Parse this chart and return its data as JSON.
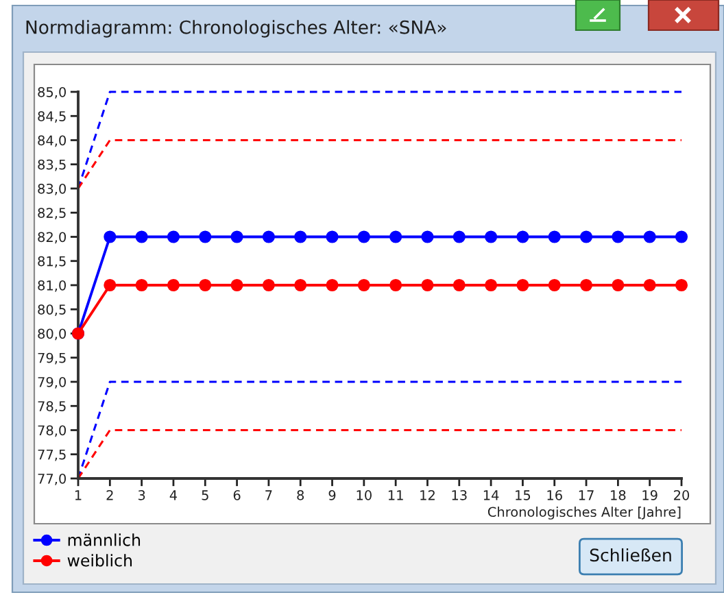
{
  "chart_data": {
    "type": "line",
    "title": "Normdiagramm: Chronologisches Alter: «SNA»",
    "xlabel": "Chronologisches Alter [Jahre]",
    "x": [
      1,
      2,
      3,
      4,
      5,
      6,
      7,
      8,
      9,
      10,
      11,
      12,
      13,
      14,
      15,
      16,
      17,
      18,
      19,
      20
    ],
    "xlim": [
      1,
      20
    ],
    "xticks": [
      1,
      2,
      3,
      4,
      5,
      6,
      7,
      8,
      9,
      10,
      11,
      12,
      13,
      14,
      15,
      16,
      17,
      18,
      19,
      20
    ],
    "ylim": [
      77,
      85
    ],
    "yticks": [
      {
        "value": 77,
        "label": "77,0"
      },
      {
        "value": 77.5,
        "label": "77,5"
      },
      {
        "value": 78,
        "label": "78,0"
      },
      {
        "value": 78.5,
        "label": "78,5"
      },
      {
        "value": 79,
        "label": "79,0"
      },
      {
        "value": 79.5,
        "label": "79,5"
      },
      {
        "value": 80,
        "label": "80,0"
      },
      {
        "value": 80.5,
        "label": "80,5"
      },
      {
        "value": 81,
        "label": "81,0"
      },
      {
        "value": 81.5,
        "label": "81,5"
      },
      {
        "value": 82,
        "label": "82,0"
      },
      {
        "value": 82.5,
        "label": "82,5"
      },
      {
        "value": 83,
        "label": "83,0"
      },
      {
        "value": 83.5,
        "label": "83,5"
      },
      {
        "value": 84,
        "label": "84,0"
      },
      {
        "value": 84.5,
        "label": "84,5"
      },
      {
        "value": 85,
        "label": "85,0"
      }
    ],
    "series": [
      {
        "name": "männlich",
        "color": "#0000ff",
        "marker": "circle",
        "line_style": "solid",
        "values": [
          80,
          82,
          82,
          82,
          82,
          82,
          82,
          82,
          82,
          82,
          82,
          82,
          82,
          82,
          82,
          82,
          82,
          82,
          82,
          82
        ]
      },
      {
        "name": "weiblich",
        "color": "#ff0000",
        "marker": "circle",
        "line_style": "solid",
        "values": [
          80,
          81,
          81,
          81,
          81,
          81,
          81,
          81,
          81,
          81,
          81,
          81,
          81,
          81,
          81,
          81,
          81,
          81,
          81,
          81
        ]
      },
      {
        "color": "#0000ff",
        "marker": "none",
        "line_style": "dashed",
        "values": [
          83,
          85,
          85,
          85,
          85,
          85,
          85,
          85,
          85,
          85,
          85,
          85,
          85,
          85,
          85,
          85,
          85,
          85,
          85,
          85
        ]
      },
      {
        "color": "#ff0000",
        "marker": "none",
        "line_style": "dashed",
        "values": [
          83,
          84,
          84,
          84,
          84,
          84,
          84,
          84,
          84,
          84,
          84,
          84,
          84,
          84,
          84,
          84,
          84,
          84,
          84,
          84
        ]
      },
      {
        "color": "#0000ff",
        "marker": "none",
        "line_style": "dashed",
        "values": [
          77,
          79,
          79,
          79,
          79,
          79,
          79,
          79,
          79,
          79,
          79,
          79,
          79,
          79,
          79,
          79,
          79,
          79,
          79,
          79
        ]
      },
      {
        "color": "#ff0000",
        "marker": "none",
        "line_style": "dashed",
        "values": [
          77,
          78,
          78,
          78,
          78,
          78,
          78,
          78,
          78,
          78,
          78,
          78,
          78,
          78,
          78,
          78,
          78,
          78,
          78,
          78
        ]
      }
    ],
    "legend": "bottom left",
    "annotations": [
      "Schließen"
    ]
  }
}
